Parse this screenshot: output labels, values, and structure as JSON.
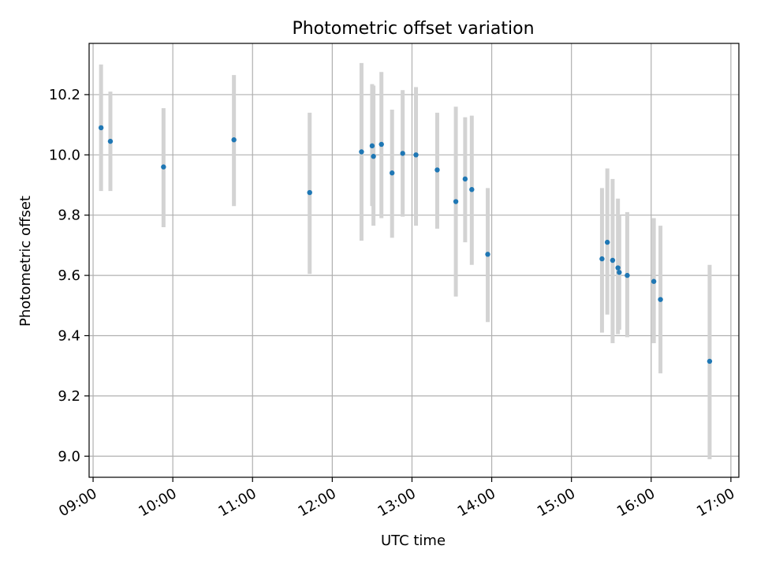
{
  "chart_data": {
    "type": "scatter",
    "title": "Photometric offset variation",
    "xlabel": "UTC time",
    "ylabel": "Photometric offset",
    "x_ticks": [
      "09:00",
      "10:00",
      "11:00",
      "12:00",
      "13:00",
      "14:00",
      "15:00",
      "16:00",
      "17:00"
    ],
    "y_ticks": [
      "9.0",
      "9.2",
      "9.4",
      "9.6",
      "9.8",
      "10.0",
      "10.2"
    ],
    "xlim": [
      "08:57",
      "17:06"
    ],
    "ylim": [
      8.93,
      10.37
    ],
    "grid": true,
    "colors": {
      "points": "#1f77b4",
      "error_bars": "#d3d3d3",
      "grid": "#b0b0b0"
    },
    "points": [
      {
        "x": "09:06",
        "y": 10.09,
        "ylow": 9.88,
        "yhigh": 10.3
      },
      {
        "x": "09:13",
        "y": 10.045,
        "ylow": 9.88,
        "yhigh": 10.21
      },
      {
        "x": "09:53",
        "y": 9.96,
        "ylow": 9.76,
        "yhigh": 10.155
      },
      {
        "x": "10:46",
        "y": 10.05,
        "ylow": 9.83,
        "yhigh": 10.265
      },
      {
        "x": "11:43",
        "y": 9.875,
        "ylow": 9.605,
        "yhigh": 10.14
      },
      {
        "x": "12:22",
        "y": 10.01,
        "ylow": 9.715,
        "yhigh": 10.305
      },
      {
        "x": "12:30",
        "y": 10.03,
        "ylow": 9.83,
        "yhigh": 10.235
      },
      {
        "x": "12:31",
        "y": 9.995,
        "ylow": 9.765,
        "yhigh": 10.23
      },
      {
        "x": "12:37",
        "y": 10.035,
        "ylow": 9.79,
        "yhigh": 10.275
      },
      {
        "x": "12:45",
        "y": 9.94,
        "ylow": 9.725,
        "yhigh": 10.15
      },
      {
        "x": "12:53",
        "y": 10.005,
        "ylow": 9.795,
        "yhigh": 10.215
      },
      {
        "x": "13:03",
        "y": 10.0,
        "ylow": 9.765,
        "yhigh": 10.225
      },
      {
        "x": "13:19",
        "y": 9.95,
        "ylow": 9.755,
        "yhigh": 10.14
      },
      {
        "x": "13:33",
        "y": 9.845,
        "ylow": 9.53,
        "yhigh": 10.16
      },
      {
        "x": "13:40",
        "y": 9.92,
        "ylow": 9.71,
        "yhigh": 10.125
      },
      {
        "x": "13:45",
        "y": 9.885,
        "ylow": 9.635,
        "yhigh": 10.13
      },
      {
        "x": "13:57",
        "y": 9.67,
        "ylow": 9.445,
        "yhigh": 9.89
      },
      {
        "x": "15:23",
        "y": 9.655,
        "ylow": 9.41,
        "yhigh": 9.89
      },
      {
        "x": "15:27",
        "y": 9.71,
        "ylow": 9.47,
        "yhigh": 9.955
      },
      {
        "x": "15:31",
        "y": 9.65,
        "ylow": 9.375,
        "yhigh": 9.92
      },
      {
        "x": "15:35",
        "y": 9.625,
        "ylow": 9.405,
        "yhigh": 9.855
      },
      {
        "x": "15:36",
        "y": 9.61,
        "ylow": 9.42,
        "yhigh": 9.8
      },
      {
        "x": "15:42",
        "y": 9.6,
        "ylow": 9.395,
        "yhigh": 9.81
      },
      {
        "x": "16:02",
        "y": 9.58,
        "ylow": 9.375,
        "yhigh": 9.79
      },
      {
        "x": "16:07",
        "y": 9.52,
        "ylow": 9.275,
        "yhigh": 9.765
      },
      {
        "x": "16:44",
        "y": 9.315,
        "ylow": 8.99,
        "yhigh": 9.635
      }
    ]
  }
}
